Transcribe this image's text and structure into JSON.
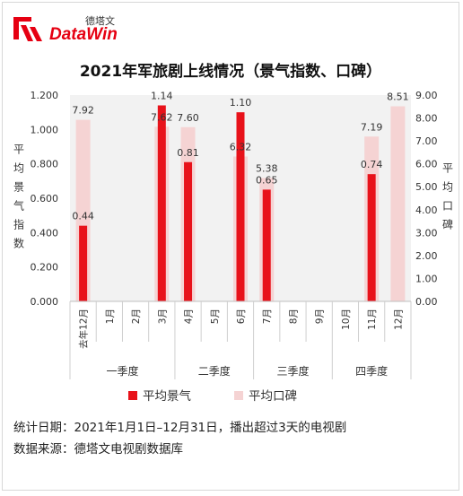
{
  "brand": {
    "name_cn": "德塔文",
    "name_en": "DataWin"
  },
  "chart_data": {
    "type": "bar",
    "title": "2021年军旅剧上线情况（景气指数、口碑）",
    "categories": [
      "去年12月",
      "1月",
      "2月",
      "3月",
      "4月",
      "5月",
      "6月",
      "7月",
      "8月",
      "9月",
      "10月",
      "11月",
      "12月"
    ],
    "groups": [
      {
        "label": "一季度",
        "from": 0,
        "to": 3
      },
      {
        "label": "二季度",
        "from": 4,
        "to": 6
      },
      {
        "label": "三季度",
        "from": 7,
        "to": 9
      },
      {
        "label": "四季度",
        "from": 10,
        "to": 12
      }
    ],
    "series": [
      {
        "name": "平均景气",
        "axis": "left",
        "color": "#e8121a",
        "values": [
          0.44,
          null,
          null,
          1.14,
          0.81,
          null,
          1.1,
          0.65,
          null,
          null,
          null,
          0.74,
          null
        ]
      },
      {
        "name": "平均口碑",
        "axis": "right",
        "color": "#f5d3d3",
        "values": [
          7.92,
          null,
          null,
          7.62,
          7.6,
          null,
          6.32,
          5.38,
          null,
          null,
          null,
          7.19,
          8.51
        ]
      }
    ],
    "ylabel": "平均景气指数",
    "y2label": "平均口碑",
    "ylim": [
      0,
      1.2
    ],
    "y2lim": [
      0,
      9
    ],
    "yticks": [
      "0.000",
      "0.200",
      "0.400",
      "0.600",
      "0.800",
      "1.000",
      "1.200"
    ],
    "y2ticks": [
      "0.00",
      "1.00",
      "2.00",
      "3.00",
      "4.00",
      "5.00",
      "6.00",
      "7.00",
      "8.00",
      "9.00"
    ],
    "grid": false,
    "legend_position": "bottom"
  },
  "footer": {
    "stat_date": "统计日期：2021年1月1日–12月31日，播出超过3天的电视剧",
    "source": "数据来源：德塔文电视剧数据库"
  }
}
